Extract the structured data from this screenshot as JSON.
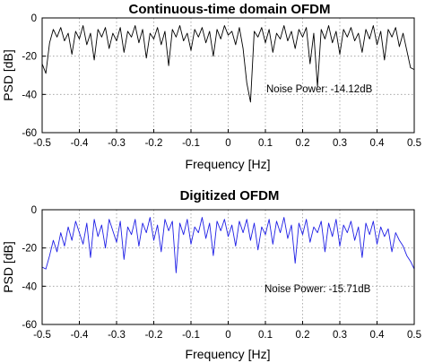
{
  "chart_data": [
    {
      "type": "line",
      "title": "Continuous-time domain OFDM",
      "xlabel": "Frequency [Hz]",
      "ylabel": "PSD [dB]",
      "xlim": [
        -0.5,
        0.5
      ],
      "ylim": [
        -60,
        0
      ],
      "xticks": [
        "-0.5",
        "-0.4",
        "-0.3",
        "-0.2",
        "-0.1",
        "0",
        "0.1",
        "0.2",
        "0.3",
        "0.4",
        "0.5"
      ],
      "yticks": [
        "0",
        "-20",
        "-40",
        "-60"
      ],
      "grid": true,
      "annotation": "Noise Power: -14.12dB",
      "color": "#000000",
      "series": [
        {
          "x": [
            -0.5,
            -0.49,
            -0.48,
            -0.47,
            -0.46,
            -0.45,
            -0.44,
            -0.43,
            -0.42,
            -0.41,
            -0.4,
            -0.39,
            -0.38,
            -0.37,
            -0.36,
            -0.35,
            -0.34,
            -0.33,
            -0.32,
            -0.31,
            -0.3,
            -0.29,
            -0.28,
            -0.27,
            -0.26,
            -0.25,
            -0.24,
            -0.23,
            -0.22,
            -0.21,
            -0.2,
            -0.19,
            -0.18,
            -0.17,
            -0.16,
            -0.15,
            -0.14,
            -0.13,
            -0.12,
            -0.11,
            -0.1,
            -0.09,
            -0.08,
            -0.07,
            -0.06,
            -0.05,
            -0.04,
            -0.03,
            -0.02,
            -0.01,
            0.0,
            0.01,
            0.02,
            0.03,
            0.04,
            0.05,
            0.06,
            0.07,
            0.08,
            0.09,
            0.1,
            0.11,
            0.12,
            0.13,
            0.14,
            0.15,
            0.16,
            0.17,
            0.18,
            0.19,
            0.2,
            0.21,
            0.22,
            0.23,
            0.24,
            0.25,
            0.26,
            0.27,
            0.28,
            0.29,
            0.3,
            0.31,
            0.32,
            0.33,
            0.34,
            0.35,
            0.36,
            0.37,
            0.38,
            0.39,
            0.4,
            0.41,
            0.42,
            0.43,
            0.44,
            0.45,
            0.46,
            0.47,
            0.48,
            0.49,
            0.5
          ],
          "values": [
            -24,
            -29,
            -13,
            -6,
            -10,
            -5,
            -12,
            -8,
            -19,
            -7,
            -11,
            -4,
            -14,
            -8,
            -22,
            -6,
            -10,
            -5,
            -16,
            -8,
            -12,
            -5,
            -18,
            -7,
            -10,
            -4,
            -13,
            -6,
            -21,
            -8,
            -11,
            -5,
            -14,
            -7,
            -25,
            -6,
            -10,
            -4,
            -12,
            -8,
            -17,
            -6,
            -10,
            -5,
            -13,
            -7,
            -20,
            -6,
            -11,
            -4,
            -9,
            -7,
            -14,
            -5,
            -16,
            -34,
            -44,
            -7,
            -10,
            -5,
            -13,
            -6,
            -18,
            -8,
            -11,
            -4,
            -12,
            -7,
            -16,
            -6,
            -10,
            -5,
            -24,
            -8,
            -36,
            -6,
            -11,
            -4,
            -13,
            -7,
            -19,
            -6,
            -10,
            -5,
            -12,
            -8,
            -18,
            -6,
            -11,
            -4,
            -14,
            -7,
            -22,
            -6,
            -10,
            -5,
            -15,
            -8,
            -17,
            -26,
            -27
          ]
        }
      ]
    },
    {
      "type": "line",
      "title": "Digitized OFDM",
      "xlabel": "Frequency [Hz]",
      "ylabel": "PSD [dB]",
      "xlim": [
        -0.5,
        0.5
      ],
      "ylim": [
        -60,
        0
      ],
      "xticks": [
        "-0.5",
        "-0.4",
        "-0.3",
        "-0.2",
        "-0.1",
        "0",
        "0.1",
        "0.2",
        "0.3",
        "0.4",
        "0.5"
      ],
      "yticks": [
        "0",
        "-20",
        "-40",
        "-60"
      ],
      "grid": true,
      "annotation": "Noise Power: -15.71dB",
      "color": "#1f1fe6",
      "series": [
        {
          "x": [
            -0.5,
            -0.49,
            -0.48,
            -0.47,
            -0.46,
            -0.45,
            -0.44,
            -0.43,
            -0.42,
            -0.41,
            -0.4,
            -0.39,
            -0.38,
            -0.37,
            -0.36,
            -0.35,
            -0.34,
            -0.33,
            -0.32,
            -0.31,
            -0.3,
            -0.29,
            -0.28,
            -0.27,
            -0.26,
            -0.25,
            -0.24,
            -0.23,
            -0.22,
            -0.21,
            -0.2,
            -0.19,
            -0.18,
            -0.17,
            -0.16,
            -0.15,
            -0.14,
            -0.13,
            -0.12,
            -0.11,
            -0.1,
            -0.09,
            -0.08,
            -0.07,
            -0.06,
            -0.05,
            -0.04,
            -0.03,
            -0.02,
            -0.01,
            0.0,
            0.01,
            0.02,
            0.03,
            0.04,
            0.05,
            0.06,
            0.07,
            0.08,
            0.09,
            0.1,
            0.11,
            0.12,
            0.13,
            0.14,
            0.15,
            0.16,
            0.17,
            0.18,
            0.19,
            0.2,
            0.21,
            0.22,
            0.23,
            0.24,
            0.25,
            0.26,
            0.27,
            0.28,
            0.29,
            0.3,
            0.31,
            0.32,
            0.33,
            0.34,
            0.35,
            0.36,
            0.37,
            0.38,
            0.39,
            0.4,
            0.41,
            0.42,
            0.43,
            0.44,
            0.45,
            0.46,
            0.47,
            0.48,
            0.49,
            0.5
          ],
          "values": [
            -30,
            -31,
            -24,
            -16,
            -22,
            -12,
            -19,
            -9,
            -16,
            -6,
            -12,
            -18,
            -7,
            -25,
            -5,
            -14,
            -8,
            -20,
            -5,
            -11,
            -17,
            -6,
            -26,
            -9,
            -13,
            -5,
            -19,
            -7,
            -12,
            -4,
            -16,
            -8,
            -22,
            -5,
            -11,
            -6,
            -33,
            -7,
            -13,
            -5,
            -18,
            -9,
            -12,
            -4,
            -15,
            -7,
            -24,
            -6,
            -11,
            -5,
            -14,
            -8,
            -19,
            -6,
            -12,
            -5,
            -16,
            -7,
            -21,
            -9,
            -13,
            -5,
            -18,
            -6,
            -12,
            -4,
            -15,
            -8,
            -28,
            -7,
            -13,
            -5,
            -17,
            -9,
            -12,
            -6,
            -22,
            -7,
            -14,
            -5,
            -19,
            -8,
            -12,
            -6,
            -16,
            -9,
            -25,
            -7,
            -13,
            -6,
            -18,
            -9,
            -14,
            -10,
            -22,
            -12,
            -16,
            -19,
            -24,
            -27,
            -31
          ]
        }
      ]
    }
  ]
}
